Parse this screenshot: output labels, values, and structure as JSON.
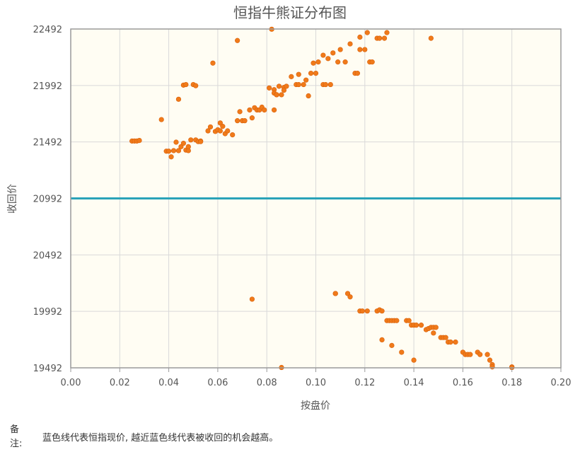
{
  "chart_data": {
    "type": "scatter",
    "title": "恒指牛熊证分布图",
    "xlabel": "按盘价",
    "ylabel": "收回价",
    "xlim": [
      0.0,
      0.2
    ],
    "ylim": [
      19492,
      22492
    ],
    "x_ticks": [
      "0.00",
      "0.02",
      "0.04",
      "0.06",
      "0.08",
      "0.10",
      "0.12",
      "0.14",
      "0.16",
      "0.18",
      "0.20"
    ],
    "y_ticks": [
      "19492",
      "19992",
      "20492",
      "20992",
      "21492",
      "21992",
      "22492"
    ],
    "reference_line": {
      "y": 20992,
      "color": "#2aa3b8"
    },
    "point_color": "#f07a1a",
    "plot_background": "#fffdf3",
    "grid": true,
    "points": [
      [
        0.025,
        21500
      ],
      [
        0.026,
        21500
      ],
      [
        0.027,
        21500
      ],
      [
        0.028,
        21505
      ],
      [
        0.037,
        21690
      ],
      [
        0.039,
        21410
      ],
      [
        0.04,
        21410
      ],
      [
        0.041,
        21360
      ],
      [
        0.042,
        21415
      ],
      [
        0.043,
        21490
      ],
      [
        0.044,
        21415
      ],
      [
        0.044,
        21870
      ],
      [
        0.045,
        21450
      ],
      [
        0.046,
        21480
      ],
      [
        0.047,
        21420
      ],
      [
        0.046,
        21995
      ],
      [
        0.047,
        22000
      ],
      [
        0.048,
        21415
      ],
      [
        0.048,
        21450
      ],
      [
        0.049,
        21510
      ],
      [
        0.05,
        22000
      ],
      [
        0.051,
        21990
      ],
      [
        0.051,
        21510
      ],
      [
        0.052,
        21495
      ],
      [
        0.053,
        21500
      ],
      [
        0.053,
        21495
      ],
      [
        0.056,
        21590
      ],
      [
        0.057,
        21625
      ],
      [
        0.058,
        22190
      ],
      [
        0.059,
        21585
      ],
      [
        0.06,
        21600
      ],
      [
        0.061,
        21590
      ],
      [
        0.061,
        21660
      ],
      [
        0.062,
        21630
      ],
      [
        0.063,
        21565
      ],
      [
        0.064,
        21590
      ],
      [
        0.066,
        21555
      ],
      [
        0.068,
        22390
      ],
      [
        0.068,
        21680
      ],
      [
        0.069,
        21760
      ],
      [
        0.07,
        21680
      ],
      [
        0.071,
        21680
      ],
      [
        0.073,
        21775
      ],
      [
        0.074,
        21705
      ],
      [
        0.075,
        21795
      ],
      [
        0.076,
        21775
      ],
      [
        0.077,
        21775
      ],
      [
        0.078,
        21800
      ],
      [
        0.079,
        21775
      ],
      [
        0.081,
        21970
      ],
      [
        0.082,
        22490
      ],
      [
        0.083,
        21955
      ],
      [
        0.083,
        21925
      ],
      [
        0.083,
        21775
      ],
      [
        0.084,
        21910
      ],
      [
        0.084,
        21910
      ],
      [
        0.085,
        21985
      ],
      [
        0.086,
        21910
      ],
      [
        0.087,
        21975
      ],
      [
        0.087,
        21950
      ],
      [
        0.088,
        21985
      ],
      [
        0.09,
        22070
      ],
      [
        0.092,
        22000
      ],
      [
        0.093,
        22000
      ],
      [
        0.093,
        22090
      ],
      [
        0.095,
        22000
      ],
      [
        0.096,
        22040
      ],
      [
        0.097,
        21900
      ],
      [
        0.098,
        22100
      ],
      [
        0.099,
        22190
      ],
      [
        0.1,
        22100
      ],
      [
        0.101,
        22200
      ],
      [
        0.103,
        22260
      ],
      [
        0.103,
        22000
      ],
      [
        0.104,
        22000
      ],
      [
        0.105,
        22230
      ],
      [
        0.106,
        22000
      ],
      [
        0.107,
        22280
      ],
      [
        0.109,
        22200
      ],
      [
        0.11,
        22310
      ],
      [
        0.112,
        22200
      ],
      [
        0.114,
        22360
      ],
      [
        0.116,
        22100
      ],
      [
        0.117,
        22100
      ],
      [
        0.118,
        22310
      ],
      [
        0.118,
        22420
      ],
      [
        0.12,
        22310
      ],
      [
        0.121,
        22460
      ],
      [
        0.122,
        22200
      ],
      [
        0.123,
        22200
      ],
      [
        0.125,
        22410
      ],
      [
        0.126,
        22410
      ],
      [
        0.128,
        22410
      ],
      [
        0.129,
        22460
      ],
      [
        0.147,
        22410
      ],
      [
        0.074,
        20100
      ],
      [
        0.086,
        19495
      ],
      [
        0.108,
        20150
      ],
      [
        0.108,
        20150
      ],
      [
        0.113,
        20150
      ],
      [
        0.114,
        20120
      ],
      [
        0.118,
        19995
      ],
      [
        0.119,
        19995
      ],
      [
        0.121,
        19995
      ],
      [
        0.125,
        19995
      ],
      [
        0.126,
        20005
      ],
      [
        0.127,
        19995
      ],
      [
        0.127,
        19740
      ],
      [
        0.129,
        19910
      ],
      [
        0.13,
        19910
      ],
      [
        0.131,
        19910
      ],
      [
        0.131,
        19690
      ],
      [
        0.132,
        19910
      ],
      [
        0.133,
        19910
      ],
      [
        0.135,
        19630
      ],
      [
        0.137,
        19910
      ],
      [
        0.138,
        19910
      ],
      [
        0.139,
        19870
      ],
      [
        0.14,
        19870
      ],
      [
        0.14,
        19560
      ],
      [
        0.141,
        19870
      ],
      [
        0.143,
        19870
      ],
      [
        0.145,
        19830
      ],
      [
        0.146,
        19840
      ],
      [
        0.147,
        19850
      ],
      [
        0.148,
        19800
      ],
      [
        0.148,
        19850
      ],
      [
        0.149,
        19850
      ],
      [
        0.151,
        19760
      ],
      [
        0.152,
        19760
      ],
      [
        0.153,
        19760
      ],
      [
        0.154,
        19720
      ],
      [
        0.155,
        19720
      ],
      [
        0.157,
        19720
      ],
      [
        0.16,
        19630
      ],
      [
        0.161,
        19610
      ],
      [
        0.162,
        19610
      ],
      [
        0.163,
        19610
      ],
      [
        0.166,
        19630
      ],
      [
        0.167,
        19610
      ],
      [
        0.17,
        19610
      ],
      [
        0.171,
        19560
      ],
      [
        0.172,
        19520
      ],
      [
        0.172,
        19500
      ],
      [
        0.18,
        19500
      ],
      [
        0.18,
        19495
      ]
    ]
  },
  "note": {
    "label": "备注:",
    "text": "蓝色线代表恒指现价, 越近蓝色线代表被收回的机会越高。"
  }
}
